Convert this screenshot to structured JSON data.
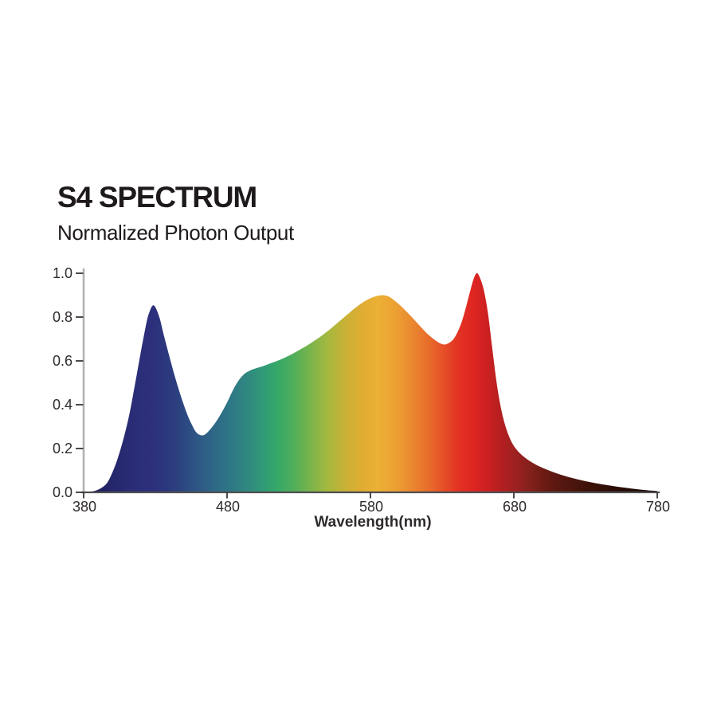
{
  "header": {
    "title": "S4 SPECTRUM",
    "subtitle": "Normalized Photon Output"
  },
  "chart_data": {
    "type": "area",
    "title": "S4 SPECTRUM",
    "subtitle": "Normalized Photon Output",
    "xlabel": "Wavelength(nm)",
    "ylabel": "",
    "xlim": [
      380,
      780
    ],
    "ylim": [
      0,
      1
    ],
    "x_ticks": [
      "380",
      "480",
      "580",
      "680",
      "780"
    ],
    "y_ticks": [
      "0.0",
      "0.2",
      "0.4",
      "0.6",
      "0.8",
      "1.0"
    ],
    "grid": false,
    "legend": false,
    "series": [
      {
        "name": "normalized-photon-output",
        "points": [
          [
            380,
            0.001
          ],
          [
            386,
            0.004
          ],
          [
            391,
            0.015
          ],
          [
            396,
            0.04
          ],
          [
            400,
            0.09
          ],
          [
            404,
            0.16
          ],
          [
            408,
            0.25
          ],
          [
            412,
            0.36
          ],
          [
            416,
            0.5
          ],
          [
            420,
            0.645
          ],
          [
            424,
            0.78
          ],
          [
            426,
            0.825
          ],
          [
            428,
            0.852
          ],
          [
            430,
            0.845
          ],
          [
            433,
            0.795
          ],
          [
            436,
            0.715
          ],
          [
            440,
            0.615
          ],
          [
            444,
            0.52
          ],
          [
            448,
            0.435
          ],
          [
            452,
            0.36
          ],
          [
            455,
            0.315
          ],
          [
            458,
            0.278
          ],
          [
            461,
            0.262
          ],
          [
            464,
            0.262
          ],
          [
            467,
            0.278
          ],
          [
            471,
            0.31
          ],
          [
            475,
            0.35
          ],
          [
            480,
            0.41
          ],
          [
            484,
            0.465
          ],
          [
            488,
            0.51
          ],
          [
            492,
            0.54
          ],
          [
            496,
            0.556
          ],
          [
            500,
            0.566
          ],
          [
            505,
            0.576
          ],
          [
            510,
            0.588
          ],
          [
            515,
            0.6
          ],
          [
            520,
            0.614
          ],
          [
            525,
            0.63
          ],
          [
            530,
            0.648
          ],
          [
            535,
            0.667
          ],
          [
            540,
            0.688
          ],
          [
            545,
            0.71
          ],
          [
            550,
            0.735
          ],
          [
            555,
            0.762
          ],
          [
            560,
            0.79
          ],
          [
            565,
            0.818
          ],
          [
            570,
            0.845
          ],
          [
            575,
            0.868
          ],
          [
            580,
            0.886
          ],
          [
            585,
            0.897
          ],
          [
            589,
            0.9
          ],
          [
            593,
            0.893
          ],
          [
            597,
            0.874
          ],
          [
            601,
            0.852
          ],
          [
            605,
            0.826
          ],
          [
            610,
            0.792
          ],
          [
            615,
            0.756
          ],
          [
            620,
            0.722
          ],
          [
            625,
            0.695
          ],
          [
            629,
            0.679
          ],
          [
            632,
            0.675
          ],
          [
            635,
            0.683
          ],
          [
            638,
            0.7
          ],
          [
            641,
            0.735
          ],
          [
            644,
            0.785
          ],
          [
            647,
            0.855
          ],
          [
            650,
            0.93
          ],
          [
            652,
            0.975
          ],
          [
            654,
            1.0
          ],
          [
            656,
            0.985
          ],
          [
            659,
            0.925
          ],
          [
            662,
            0.815
          ],
          [
            665,
            0.655
          ],
          [
            668,
            0.5
          ],
          [
            671,
            0.385
          ],
          [
            674,
            0.305
          ],
          [
            677,
            0.25
          ],
          [
            680,
            0.212
          ],
          [
            684,
            0.18
          ],
          [
            688,
            0.157
          ],
          [
            692,
            0.139
          ],
          [
            696,
            0.124
          ],
          [
            700,
            0.112
          ],
          [
            706,
            0.096
          ],
          [
            712,
            0.082
          ],
          [
            718,
            0.07
          ],
          [
            724,
            0.06
          ],
          [
            730,
            0.051
          ],
          [
            737,
            0.042
          ],
          [
            744,
            0.034
          ],
          [
            751,
            0.027
          ],
          [
            758,
            0.021
          ],
          [
            765,
            0.015
          ],
          [
            772,
            0.01
          ],
          [
            780,
            0.006
          ]
        ]
      }
    ],
    "gradient_stops": [
      {
        "nm": 380,
        "color": "#1c1c53"
      },
      {
        "nm": 396,
        "color": "#232468"
      },
      {
        "nm": 412,
        "color": "#292c74"
      },
      {
        "nm": 428,
        "color": "#2d2f7d"
      },
      {
        "nm": 444,
        "color": "#2c3e7e"
      },
      {
        "nm": 458,
        "color": "#2d5484"
      },
      {
        "nm": 468,
        "color": "#2e6486"
      },
      {
        "nm": 480,
        "color": "#2e7487"
      },
      {
        "nm": 492,
        "color": "#2f8581"
      },
      {
        "nm": 504,
        "color": "#319878"
      },
      {
        "nm": 515,
        "color": "#36a869"
      },
      {
        "nm": 526,
        "color": "#4fae5a"
      },
      {
        "nm": 538,
        "color": "#79b44b"
      },
      {
        "nm": 550,
        "color": "#a4b83f"
      },
      {
        "nm": 562,
        "color": "#c8b136"
      },
      {
        "nm": 574,
        "color": "#e0ac32"
      },
      {
        "nm": 585,
        "color": "#ecb135"
      },
      {
        "nm": 597,
        "color": "#eca133"
      },
      {
        "nm": 609,
        "color": "#ea8830"
      },
      {
        "nm": 620,
        "color": "#e86e2b"
      },
      {
        "nm": 631,
        "color": "#e64f27"
      },
      {
        "nm": 641,
        "color": "#e33323"
      },
      {
        "nm": 652,
        "color": "#de2522"
      },
      {
        "nm": 662,
        "color": "#cb2021"
      },
      {
        "nm": 672,
        "color": "#b21f20"
      },
      {
        "nm": 682,
        "color": "#9b2121"
      },
      {
        "nm": 692,
        "color": "#82201b"
      },
      {
        "nm": 702,
        "color": "#691a13"
      },
      {
        "nm": 715,
        "color": "#531710"
      },
      {
        "nm": 730,
        "color": "#3f1309"
      },
      {
        "nm": 745,
        "color": "#2f0f07"
      },
      {
        "nm": 762,
        "color": "#230b05"
      },
      {
        "nm": 780,
        "color": "#190904"
      }
    ],
    "colors": {
      "y_axis": "#b3b3b5",
      "x_axis": "#4f4f51",
      "tick": "#3a3637",
      "tick_label": "#2f2b2c",
      "title_text": "#1e1a1b",
      "background": "#ffffff"
    }
  }
}
